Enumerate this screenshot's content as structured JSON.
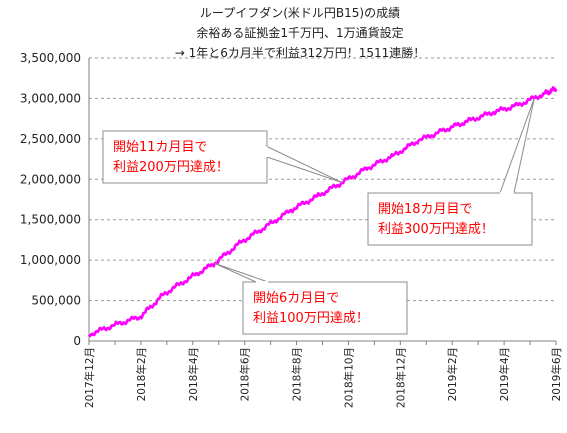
{
  "chart_data": {
    "type": "line",
    "title_lines": [
      "ループイフダン(米ドル円B15)の成績",
      "余裕ある証拠金1千万円、1万通貨設定",
      "→ 1年と6カ月半で利益312万円！1511連勝！"
    ],
    "xlabel": "",
    "ylabel": "",
    "ylim": [
      0,
      3500000
    ],
    "y_ticks": [
      0,
      500000,
      1000000,
      1500000,
      2000000,
      2500000,
      3000000,
      3500000
    ],
    "y_tick_labels": [
      "0",
      "500,000",
      "1,000,000",
      "1,500,000",
      "2,000,000",
      "2,500,000",
      "3,000,000",
      "3,500,000"
    ],
    "x_tick_labels": [
      "2017年12月",
      "2018年2月",
      "2018年4月",
      "2018年6月",
      "2018年8月",
      "2018年10月",
      "2018年12月",
      "2019年2月",
      "2019年4月",
      "2019年6月"
    ],
    "grid": true,
    "line_color": "#ff00ff",
    "series": [
      {
        "x": [
          "2017-12",
          "2018-01",
          "2018-02",
          "2018-03",
          "2018-04",
          "2018-05",
          "2018-06",
          "2018-07",
          "2018-08",
          "2018-09",
          "2018-10",
          "2018-11",
          "2018-12",
          "2019-01",
          "2019-02",
          "2019-03",
          "2019-04",
          "2019-05",
          "2019-06",
          "2019-06-15"
        ],
        "values": [
          80000,
          200000,
          300000,
          580000,
          780000,
          960000,
          1220000,
          1410000,
          1620000,
          1790000,
          1960000,
          2140000,
          2290000,
          2480000,
          2610000,
          2720000,
          2830000,
          2920000,
          3060000,
          3120000
        ]
      }
    ],
    "annotations": [
      {
        "lines": [
          "開始11カ月目で",
          "利益200万円達成！"
        ],
        "target": "2018-10"
      },
      {
        "lines": [
          "開始18カ月目で",
          "利益300万円達成！"
        ],
        "target": "2019-05-20"
      },
      {
        "lines": [
          "開始6カ月目で",
          "利益100万円達成！"
        ],
        "target": "2018-05"
      }
    ]
  }
}
